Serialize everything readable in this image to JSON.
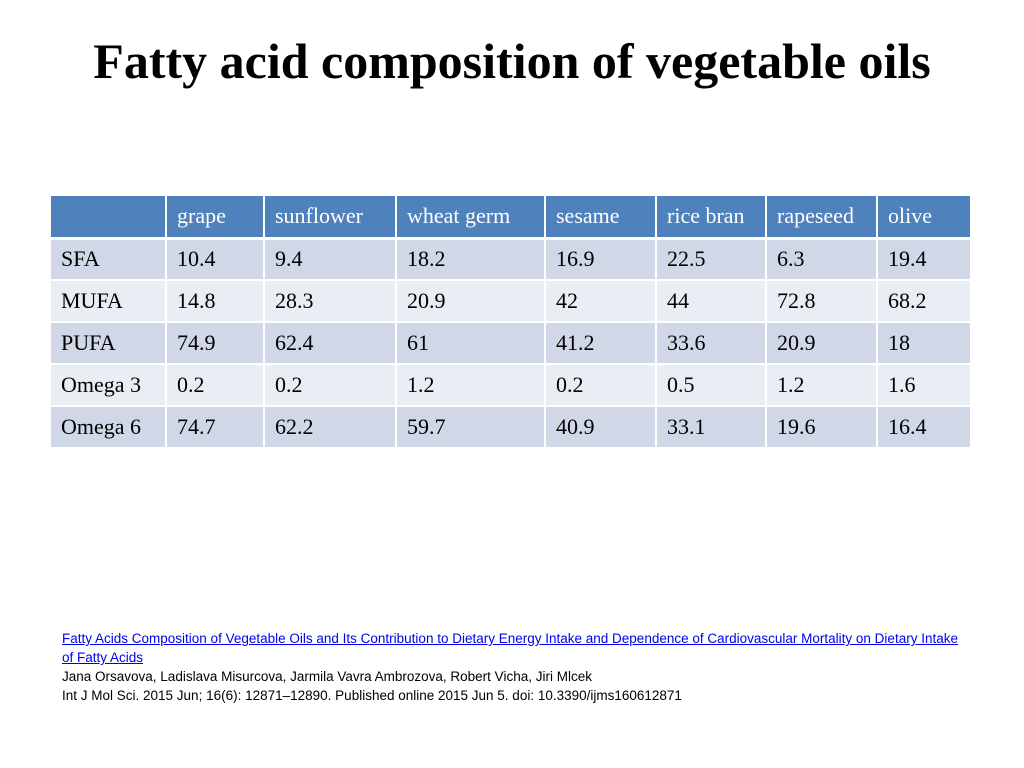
{
  "slide": {
    "title": "Fatty acid composition of vegetable oils"
  },
  "table": {
    "columns": [
      "",
      "grape",
      "sunflower",
      "wheat germ",
      "sesame",
      "rice bran",
      "rapeseed",
      "olive"
    ],
    "rows": [
      {
        "label": "SFA",
        "values": [
          "10.4",
          "9.4",
          "18.2",
          "16.9",
          "22.5",
          "6.3",
          "19.4"
        ]
      },
      {
        "label": "MUFA",
        "values": [
          "14.8",
          "28.3",
          "20.9",
          "42",
          "44",
          "72.8",
          "68.2"
        ]
      },
      {
        "label": "PUFA",
        "values": [
          "74.9",
          "62.4",
          "61",
          "41.2",
          "33.6",
          "20.9",
          "18"
        ]
      },
      {
        "label": "Omega 3",
        "values": [
          "0.2",
          "0.2",
          "1.2",
          "0.2",
          "0.5",
          "1.2",
          "1.6"
        ]
      },
      {
        "label": "Omega 6",
        "values": [
          "74.7",
          "62.2",
          "59.7",
          "40.9",
          "33.1",
          "19.6",
          "16.4"
        ]
      }
    ]
  },
  "reference": {
    "link_text": "Fatty Acids Composition of Vegetable Oils and Its Contribution to Dietary Energy Intake and Dependence of Cardiovascular Mortality on Dietary Intake of Fatty Acids",
    "authors": "Jana Orsavova, Ladislava Misurcova, Jarmila Vavra Ambrozova, Robert Vicha, Jiri Mlcek",
    "citation": "Int J Mol Sci. 2015 Jun; 16(6): 12871–12890. Published online 2015 Jun 5. doi: 10.3390/ijms160612871"
  },
  "colors": {
    "header_bg": "#4f81bd",
    "row_odd_bg": "#d0d8e8",
    "row_even_bg": "#e9edf4",
    "link": "#0000ee"
  }
}
